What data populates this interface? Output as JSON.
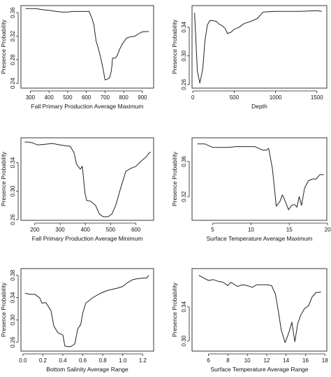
{
  "chart_data": [
    {
      "type": "line",
      "xlabel": "Fall Primary Production Average Maximum",
      "ylabel": "Presence Probability",
      "xlim": [
        250,
        960
      ],
      "ylim": [
        0.232,
        0.372
      ],
      "xticks": [
        "300",
        "400",
        "500",
        "600",
        "700",
        "800",
        "900"
      ],
      "yticks": [
        "0.24",
        "0.28",
        "0.32",
        "0.36"
      ],
      "series": [
        {
          "x": [
            275,
            300,
            330,
            365,
            400,
            440,
            470,
            500,
            530,
            560,
            590,
            615,
            628,
            640,
            652,
            665,
            678,
            690,
            700,
            712,
            725,
            733,
            737,
            740,
            755,
            765,
            778,
            795,
            815,
            835,
            860,
            878,
            895,
            915,
            935
          ],
          "y": [
            0.367,
            0.367,
            0.367,
            0.365,
            0.364,
            0.362,
            0.361,
            0.361,
            0.362,
            0.362,
            0.362,
            0.362,
            0.352,
            0.34,
            0.312,
            0.298,
            0.282,
            0.264,
            0.246,
            0.247,
            0.25,
            0.261,
            0.27,
            0.283,
            0.283,
            0.287,
            0.298,
            0.308,
            0.317,
            0.319,
            0.32,
            0.324,
            0.327,
            0.328,
            0.328
          ]
        }
      ]
    },
    {
      "type": "line",
      "xlabel": "Depth",
      "ylabel": "Presence Probability",
      "xlim": [
        -10,
        1620
      ],
      "ylim": [
        0.255,
        0.37
      ],
      "xticks": [
        "0",
        "500",
        "1000",
        "1500"
      ],
      "yticks": [
        "0.26",
        "0.30",
        "0.34"
      ],
      "series": [
        {
          "x": [
            20,
            55,
            85,
            120,
            145,
            175,
            205,
            240,
            285,
            320,
            355,
            390,
            420,
            460,
            500,
            560,
            620,
            700,
            780,
            850,
            1000,
            1150,
            1300,
            1500,
            1560
          ],
          "y": [
            0.36,
            0.278,
            0.262,
            0.282,
            0.32,
            0.343,
            0.349,
            0.349,
            0.348,
            0.344,
            0.342,
            0.338,
            0.331,
            0.333,
            0.337,
            0.34,
            0.345,
            0.348,
            0.352,
            0.361,
            0.362,
            0.362,
            0.362,
            0.363,
            0.362
          ]
        }
      ]
    },
    {
      "type": "line",
      "xlabel": "Fall Primary Production Average Minimum",
      "ylabel": "Presence Probability",
      "xlim": [
        145,
        670
      ],
      "ylim": [
        0.259,
        0.375
      ],
      "xticks": [
        "200",
        "300",
        "400",
        "500",
        "600"
      ],
      "yticks": [
        "0.26",
        "0.30",
        "0.34"
      ],
      "series": [
        {
          "x": [
            160,
            175,
            190,
            210,
            240,
            270,
            300,
            320,
            340,
            355,
            365,
            380,
            388,
            398,
            405,
            420,
            440,
            455,
            470,
            490,
            505,
            520,
            540,
            560,
            580,
            600,
            620,
            640,
            650,
            658
          ],
          "y": [
            0.369,
            0.369,
            0.368,
            0.365,
            0.366,
            0.367,
            0.365,
            0.364,
            0.363,
            0.354,
            0.338,
            0.331,
            0.335,
            0.298,
            0.287,
            0.286,
            0.28,
            0.268,
            0.264,
            0.264,
            0.268,
            0.28,
            0.305,
            0.328,
            0.332,
            0.335,
            0.342,
            0.348,
            0.353,
            0.355
          ]
        }
      ]
    },
    {
      "type": "line",
      "xlabel": "Surface Temperature Average Maximum",
      "ylabel": "Presence Probability",
      "xlim": [
        2.3,
        19.9
      ],
      "ylim": [
        0.293,
        0.387
      ],
      "xticks": [
        "5",
        "10",
        "15",
        "20"
      ],
      "yticks": [
        "0.32",
        "0.36"
      ],
      "series": [
        {
          "x": [
            3,
            4,
            5,
            6,
            7,
            8,
            9,
            9.5,
            10,
            10.5,
            11,
            11.5,
            12,
            12.3,
            12.8,
            13.3,
            13.8,
            14.1,
            14.5,
            14.9,
            15.3,
            15.7,
            16,
            16.3,
            16.6,
            17,
            17.5,
            18,
            18.5,
            19,
            19.5
          ],
          "y": [
            0.38,
            0.38,
            0.376,
            0.376,
            0.376,
            0.377,
            0.377,
            0.377,
            0.377,
            0.377,
            0.375,
            0.373,
            0.373,
            0.375,
            0.352,
            0.309,
            0.315,
            0.322,
            0.314,
            0.305,
            0.31,
            0.311,
            0.308,
            0.32,
            0.31,
            0.33,
            0.338,
            0.34,
            0.34,
            0.345,
            0.345
          ]
        }
      ]
    },
    {
      "type": "line",
      "xlabel": "Bottom Salinity Average Range",
      "ylabel": "Presence Probability",
      "xlim": [
        -0.02,
        1.31
      ],
      "ylim": [
        0.244,
        0.392
      ],
      "xticks": [
        "0.0",
        "0.2",
        "0.4",
        "0.6",
        "0.8",
        "1.0",
        "1.2"
      ],
      "yticks": [
        "0.26",
        "0.30",
        "0.34",
        "0.38"
      ],
      "series": [
        {
          "x": [
            0.02,
            0.07,
            0.12,
            0.17,
            0.19,
            0.23,
            0.28,
            0.31,
            0.35,
            0.4,
            0.42,
            0.45,
            0.48,
            0.52,
            0.55,
            0.58,
            0.6,
            0.63,
            0.7,
            0.78,
            0.85,
            0.95,
            1.0,
            1.05,
            1.1,
            1.15,
            1.2,
            1.24,
            1.26
          ],
          "y": [
            0.348,
            0.346,
            0.346,
            0.339,
            0.33,
            0.331,
            0.317,
            0.289,
            0.277,
            0.273,
            0.253,
            0.252,
            0.252,
            0.257,
            0.284,
            0.292,
            0.313,
            0.33,
            0.34,
            0.348,
            0.353,
            0.357,
            0.36,
            0.367,
            0.372,
            0.374,
            0.375,
            0.375,
            0.38
          ]
        }
      ]
    },
    {
      "type": "line",
      "xlabel": "Surface Temperature Average Range",
      "ylabel": "Presence Probability",
      "xlim": [
        4.3,
        18.2
      ],
      "ylim": [
        0.288,
        0.385
      ],
      "xticks": [
        "6",
        "8",
        "10",
        "12",
        "14",
        "16",
        "18"
      ],
      "yticks": [
        "0.30",
        "0.34"
      ],
      "series": [
        {
          "x": [
            5,
            5.5,
            6,
            6.5,
            7,
            7.5,
            8,
            8.3,
            8.7,
            9,
            9.5,
            10,
            10.5,
            11,
            11.5,
            12,
            12.5,
            12.9,
            13.2,
            13.5,
            13.9,
            14.3,
            14.6,
            14.9,
            15.2,
            15.5,
            15.9,
            16.3,
            16.7,
            17.1,
            17.4,
            17.6
          ],
          "y": [
            0.377,
            0.374,
            0.371,
            0.372,
            0.37,
            0.369,
            0.365,
            0.369,
            0.366,
            0.364,
            0.366,
            0.365,
            0.363,
            0.366,
            0.366,
            0.366,
            0.365,
            0.355,
            0.335,
            0.313,
            0.298,
            0.31,
            0.322,
            0.299,
            0.32,
            0.33,
            0.338,
            0.341,
            0.352,
            0.357,
            0.357,
            0.358
          ]
        }
      ]
    }
  ]
}
